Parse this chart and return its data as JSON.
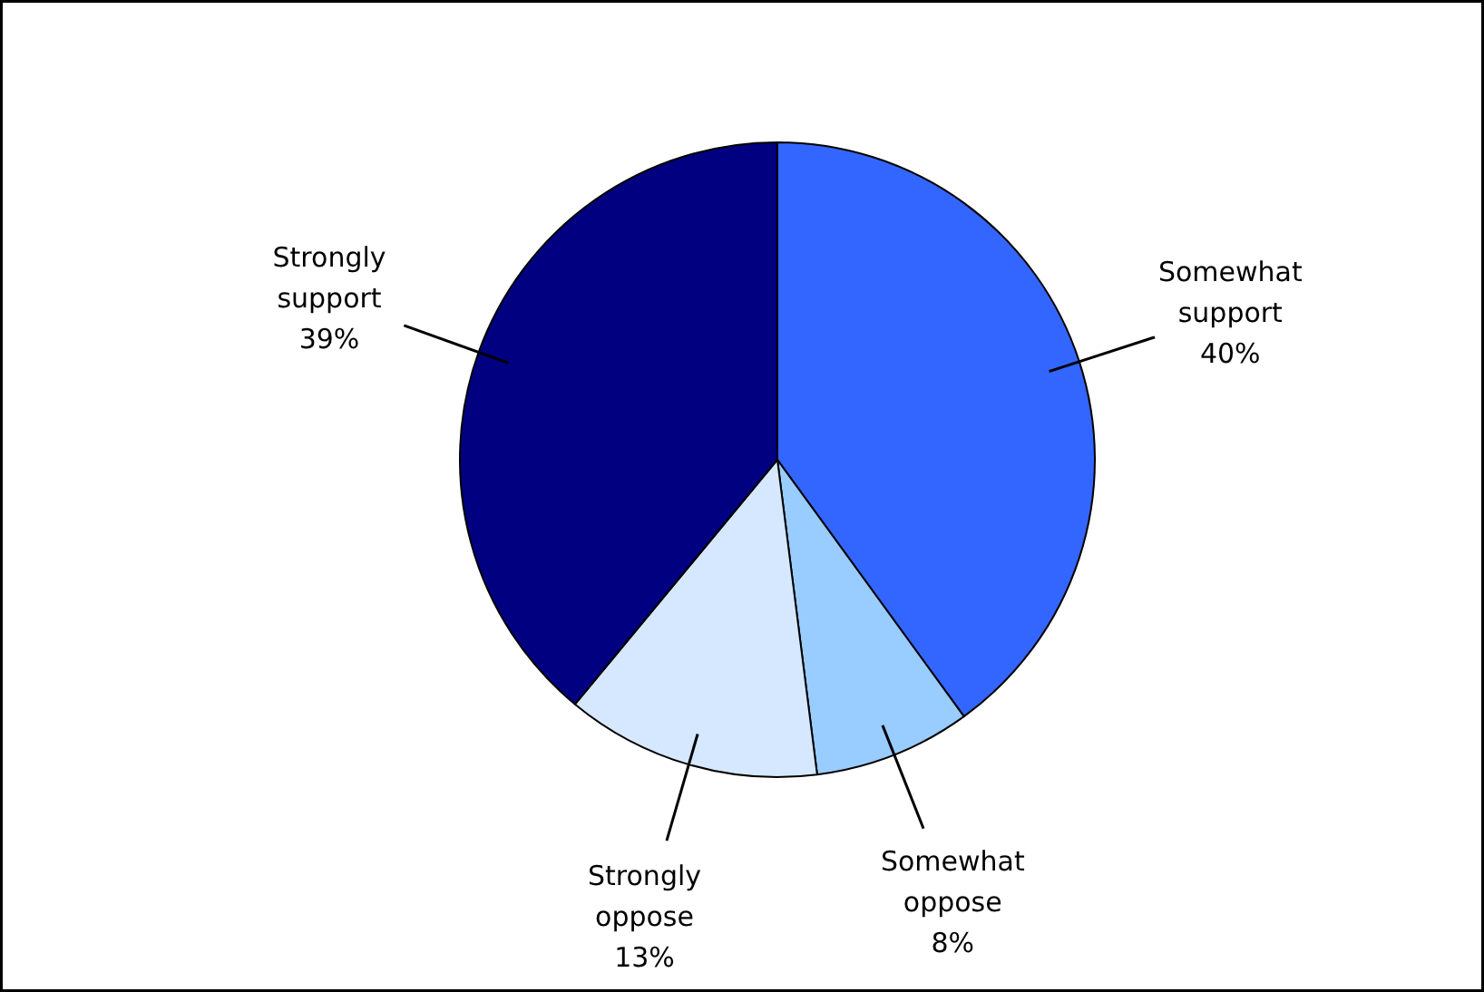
{
  "chart_data": {
    "type": "pie",
    "categories": [
      "Somewhat support",
      "Somewhat oppose",
      "Strongly oppose",
      "Strongly support"
    ],
    "values": [
      40,
      8,
      13,
      39
    ],
    "value_labels": [
      "40%",
      "8%",
      "13%",
      "39%"
    ],
    "colors": [
      "#3366ff",
      "#99ccff",
      "#d6e8ff",
      "#000080"
    ]
  }
}
